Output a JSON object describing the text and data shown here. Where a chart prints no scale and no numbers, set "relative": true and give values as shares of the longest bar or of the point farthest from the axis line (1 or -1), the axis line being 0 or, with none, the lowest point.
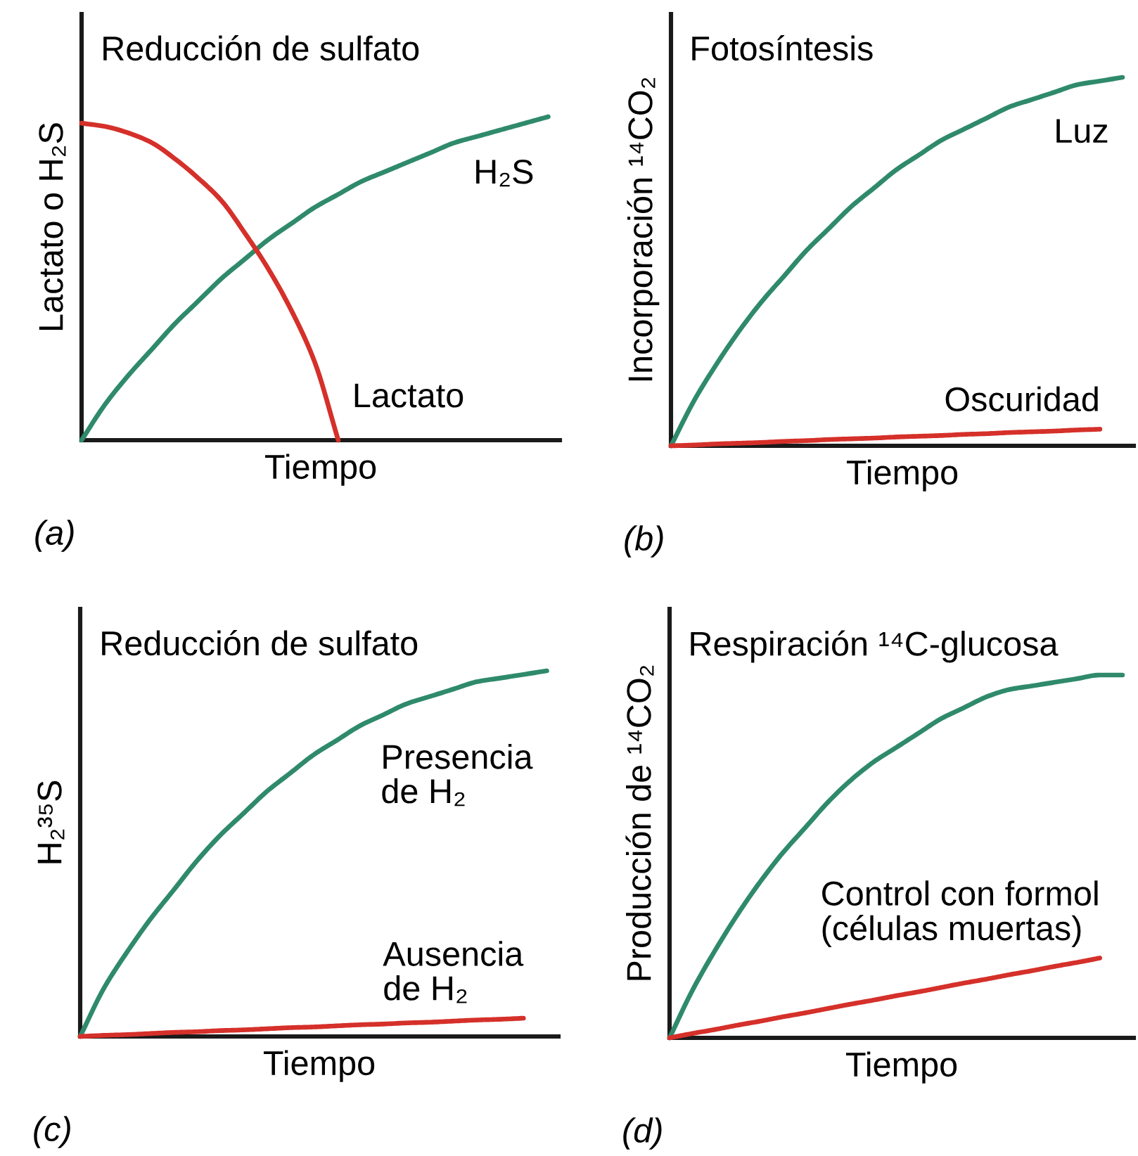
{
  "chart_data": [
    {
      "type": "line",
      "title": "Reducción de sulfato",
      "xlabel": "Tiempo",
      "ylabel": "Lactato o H₂S",
      "relative": true,
      "tick_labels": false,
      "annotations": [
        "(a)"
      ],
      "categories": [
        null,
        null,
        null,
        null,
        null,
        null,
        null,
        null,
        null,
        null,
        null,
        null,
        null,
        null,
        null,
        null,
        null,
        null,
        null,
        null,
        null
      ],
      "series": [
        {
          "name": "H₂S",
          "color": "#2f8a6c",
          "values": [
            0,
            0.11,
            0.2,
            0.28,
            0.36,
            0.43,
            0.5,
            0.56,
            0.62,
            0.67,
            0.72,
            0.76,
            0.8,
            0.83,
            0.86,
            0.89,
            0.92,
            0.94,
            0.96,
            0.98,
            1
          ]
        },
        {
          "name": "Lactato",
          "color": "#d5302a",
          "values": [
            0.98,
            0.97,
            0.95,
            0.92,
            0.87,
            0.81,
            0.74,
            0.64,
            0.53,
            0.4,
            0.24,
            0,
            null,
            null,
            null,
            null,
            null,
            null,
            null,
            null,
            null
          ]
        }
      ]
    },
    {
      "type": "line",
      "title": "Fotosíntesis",
      "xlabel": "Tiempo",
      "ylabel": "Incorporación ¹⁴CO₂",
      "relative": true,
      "tick_labels": false,
      "annotations": [
        "(b)"
      ],
      "categories": [
        null,
        null,
        null,
        null,
        null,
        null,
        null,
        null,
        null,
        null,
        null,
        null,
        null,
        null,
        null,
        null,
        null,
        null,
        null,
        null,
        null
      ],
      "series": [
        {
          "name": "Luz",
          "color": "#2f8a6c",
          "values": [
            0,
            0.12,
            0.22,
            0.31,
            0.39,
            0.46,
            0.53,
            0.59,
            0.65,
            0.7,
            0.75,
            0.79,
            0.83,
            0.86,
            0.89,
            0.92,
            0.94,
            0.96,
            0.98,
            0.99,
            1
          ]
        },
        {
          "name": "Oscuridad",
          "color": "#d5302a",
          "values": [
            0,
            0.002,
            0.005,
            0.007,
            0.009,
            0.012,
            0.014,
            0.017,
            0.019,
            0.021,
            0.024,
            0.026,
            0.028,
            0.031,
            0.033,
            0.036,
            0.038,
            0.04,
            0.043,
            0.045,
            null
          ]
        }
      ]
    },
    {
      "type": "line",
      "title": "Reducción de sulfato",
      "xlabel": "Tiempo",
      "ylabel": "H₂³⁵S",
      "relative": true,
      "tick_labels": false,
      "annotations": [
        "(c)"
      ],
      "categories": [
        null,
        null,
        null,
        null,
        null,
        null,
        null,
        null,
        null,
        null,
        null,
        null,
        null,
        null,
        null,
        null,
        null,
        null,
        null,
        null,
        null
      ],
      "series": [
        {
          "name": "Presencia\nde H₂",
          "color": "#2f8a6c",
          "values": [
            0,
            0.13,
            0.23,
            0.32,
            0.4,
            0.48,
            0.55,
            0.61,
            0.67,
            0.72,
            0.77,
            0.81,
            0.85,
            0.88,
            0.91,
            0.93,
            0.95,
            0.97,
            0.98,
            0.99,
            1
          ]
        },
        {
          "name": "Ausencia\nde H₂",
          "color": "#d5302a",
          "values": [
            0,
            0.003,
            0.005,
            0.008,
            0.011,
            0.013,
            0.016,
            0.018,
            0.021,
            0.024,
            0.026,
            0.029,
            0.032,
            0.034,
            0.037,
            0.039,
            0.042,
            0.045,
            0.047,
            0.05,
            null
          ]
        }
      ]
    },
    {
      "type": "line",
      "title": "Respiración ¹⁴C-glucosa",
      "xlabel": "Tiempo",
      "ylabel": "Producción de ¹⁴CO₂",
      "relative": true,
      "tick_labels": false,
      "annotations": [
        "(d)"
      ],
      "categories": [
        null,
        null,
        null,
        null,
        null,
        null,
        null,
        null,
        null,
        null,
        null,
        null,
        null,
        null,
        null,
        null,
        null,
        null,
        null,
        null,
        null
      ],
      "series": [
        {
          "color": "#2f8a6c",
          "values": [
            0,
            0.13,
            0.24,
            0.34,
            0.43,
            0.51,
            0.58,
            0.65,
            0.71,
            0.76,
            0.8,
            0.84,
            0.88,
            0.91,
            0.94,
            0.96,
            0.97,
            0.98,
            0.99,
            1,
            1
          ]
        },
        {
          "name": "Control con formol\n(células muertas)",
          "color": "#d5302a",
          "values": [
            0,
            0.012,
            0.023,
            0.035,
            0.046,
            0.058,
            0.069,
            0.081,
            0.093,
            0.104,
            0.116,
            0.127,
            0.139,
            0.151,
            0.162,
            0.174,
            0.185,
            0.197,
            0.208,
            0.22,
            null
          ]
        }
      ]
    }
  ]
}
